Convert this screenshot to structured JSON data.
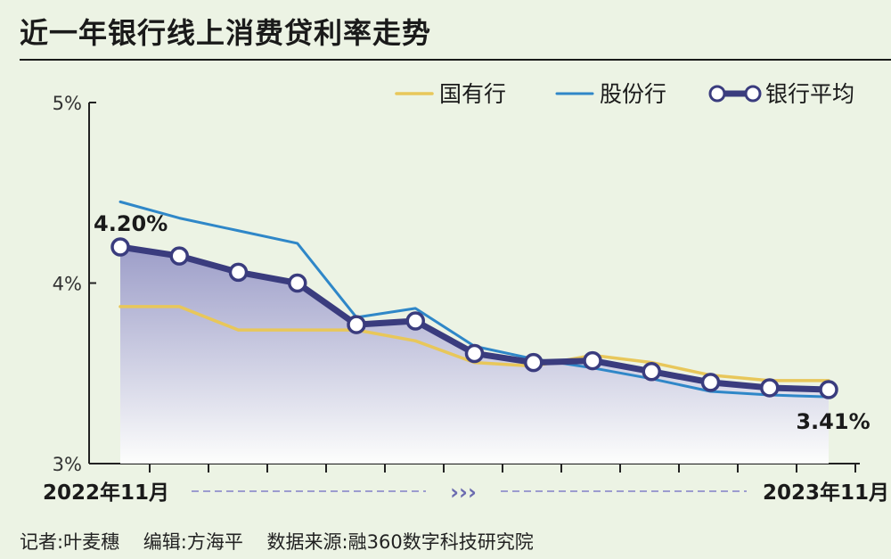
{
  "title": "近一年银行线上消费贷利率走势",
  "footer": {
    "reporter": "记者:叶麦穗",
    "editor": "编辑:方海平",
    "source": "数据来源:融360数字科技研究院"
  },
  "colors": {
    "background": "#ecf3e4",
    "state_banks": "#e8c75a",
    "joint_stock": "#2f87c8",
    "average": "#3a3c7e",
    "area_top": "#8f8fc4"
  },
  "chart_data": {
    "type": "line",
    "ylim": [
      3,
      5
    ],
    "y_ticks": [
      "5%",
      "4%",
      "3%"
    ],
    "x_start_label": "2022年11月",
    "x_end_label": "2023年11月",
    "arrow_label": "›››",
    "legend_placement": "top-right",
    "series": [
      {
        "name": "国有行",
        "values": [
          3.87,
          3.87,
          3.74,
          3.74,
          3.74,
          3.68,
          3.56,
          3.54,
          3.6,
          3.56,
          3.49,
          3.46,
          3.46
        ]
      },
      {
        "name": "股份行",
        "values": [
          4.45,
          4.36,
          4.29,
          4.22,
          3.81,
          3.86,
          3.65,
          3.58,
          3.53,
          3.47,
          3.4,
          3.38,
          3.37
        ]
      },
      {
        "name": "银行平均",
        "values": [
          4.2,
          4.15,
          4.06,
          4.0,
          3.77,
          3.79,
          3.61,
          3.56,
          3.57,
          3.51,
          3.45,
          3.42,
          3.41
        ]
      }
    ],
    "annotations": [
      {
        "series": "银行平均",
        "index": 0,
        "text": "4.20%"
      },
      {
        "series": "银行平均",
        "index": 12,
        "text": "3.41%"
      }
    ]
  }
}
